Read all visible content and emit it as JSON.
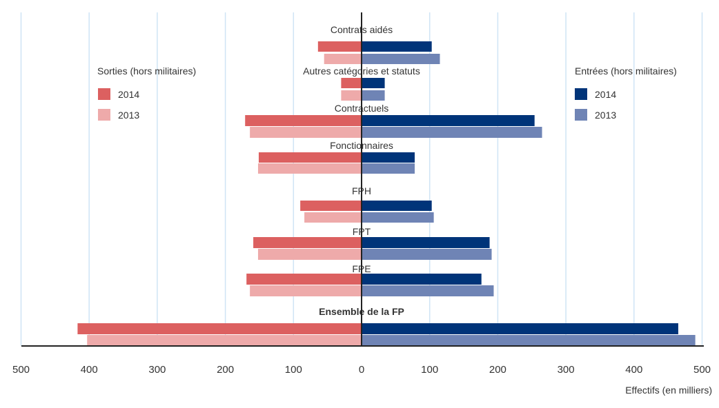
{
  "chart_data": {
    "type": "bar",
    "orientation": "horizontal",
    "layout": "butterfly",
    "categories": [
      "Contrats aidés",
      "Autres catégories et statuts",
      "Contractuels",
      "Fonctionnaires",
      "FPH",
      "FPT",
      "FPE",
      "Ensemble de la FP"
    ],
    "left_legend_title": "Sorties (hors militaires)",
    "right_legend_title": "Entrées (hors militaires)",
    "series": [
      {
        "name": "2014",
        "side": "left",
        "group": "Sorties (hors militaires)",
        "color": "#dc6060",
        "values": [
          64,
          30,
          171,
          151,
          90,
          159,
          169,
          417
        ]
      },
      {
        "name": "2013",
        "side": "left",
        "group": "Sorties (hors militaires)",
        "color": "#eeaaaa",
        "values": [
          55,
          30,
          164,
          152,
          84,
          152,
          164,
          403
        ]
      },
      {
        "name": "2014",
        "side": "right",
        "group": "Entrées (hors militaires)",
        "color": "#003479",
        "values": [
          103,
          34,
          254,
          78,
          103,
          188,
          176,
          465
        ]
      },
      {
        "name": "2013",
        "side": "right",
        "group": "Entrées (hors militaires)",
        "color": "#6f84b5",
        "values": [
          115,
          34,
          265,
          78,
          106,
          191,
          194,
          490
        ]
      }
    ],
    "xlabel": "Effectifs (en milliers)",
    "xlim": [
      -500,
      500
    ],
    "xticks": [
      "500",
      "400",
      "300",
      "200",
      "100",
      "0",
      "100",
      "200",
      "300",
      "400",
      "500"
    ],
    "grid": true,
    "legend_placement": "top-left and top-right"
  }
}
